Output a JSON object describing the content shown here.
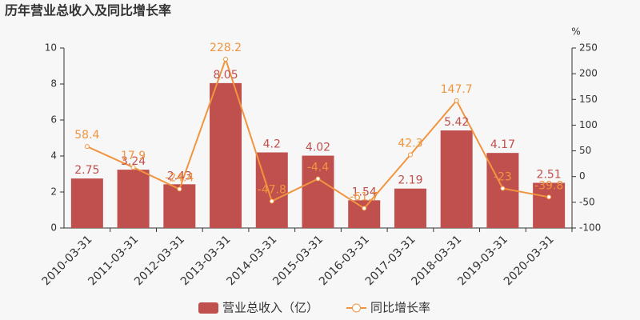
{
  "chart_data": {
    "type": "combo",
    "title": "历年营业总收入及同比增长率",
    "y2_unit": "%",
    "categories": [
      "2010-03-31",
      "2011-03-31",
      "2012-03-31",
      "2013-03-31",
      "2014-03-31",
      "2015-03-31",
      "2016-03-31",
      "2017-03-31",
      "2018-03-31",
      "2019-03-31",
      "2020-03-31"
    ],
    "series": [
      {
        "name": "营业总收入（亿）",
        "type": "bar",
        "color": "#c0504d",
        "axis": "y",
        "values": [
          2.75,
          3.24,
          2.43,
          8.05,
          4.2,
          4.02,
          1.54,
          2.19,
          5.42,
          4.17,
          2.51
        ]
      },
      {
        "name": "同比增长率",
        "type": "line",
        "color": "#f0953f",
        "axis": "y2",
        "values": [
          58.4,
          17.9,
          -24.4,
          228.2,
          -47.8,
          -4.4,
          -61.7,
          42.3,
          147.7,
          -23,
          -39.8
        ]
      }
    ],
    "ylim": [
      0,
      10
    ],
    "yticks": [
      0,
      2,
      4,
      6,
      8,
      10
    ],
    "y2lim": [
      -100,
      250
    ],
    "y2ticks": [
      -100,
      -50,
      0,
      50,
      100,
      150,
      200,
      250
    ],
    "grid": false
  }
}
